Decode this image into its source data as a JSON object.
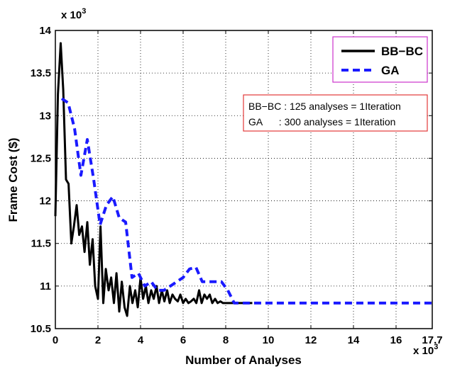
{
  "chart_data": {
    "type": "line",
    "xlabel": "Number of Analyses",
    "ylabel": "Frame Cost ($)",
    "x_multiplier_label": "x 10",
    "x_multiplier_exp": "3",
    "y_multiplier_label": "x 10",
    "y_multiplier_exp": "3",
    "xlim": [
      0,
      17.7
    ],
    "ylim": [
      10.5,
      14
    ],
    "xticks": [
      "0",
      "2",
      "4",
      "6",
      "8",
      "10",
      "12",
      "14",
      "16",
      "17.7"
    ],
    "xtick_values": [
      0,
      2,
      4,
      6,
      8,
      10,
      12,
      14,
      16,
      17.7
    ],
    "yticks": [
      "10.5",
      "11",
      "11.5",
      "12",
      "12.5",
      "13",
      "13.5",
      "14"
    ],
    "ytick_values": [
      10.5,
      11,
      11.5,
      12,
      12.5,
      13,
      13.5,
      14
    ],
    "grid": true,
    "legend_position": "top-right",
    "series": [
      {
        "name": "BB−BC",
        "color": "#000000",
        "dash": "solid",
        "x": [
          0.0,
          0.12,
          0.25,
          0.37,
          0.5,
          0.62,
          0.75,
          0.87,
          1.0,
          1.12,
          1.25,
          1.37,
          1.5,
          1.62,
          1.75,
          1.87,
          2.0,
          2.12,
          2.25,
          2.37,
          2.5,
          2.62,
          2.75,
          2.87,
          3.0,
          3.12,
          3.25,
          3.37,
          3.5,
          3.62,
          3.75,
          3.87,
          4.0,
          4.12,
          4.25,
          4.37,
          4.5,
          4.62,
          4.75,
          4.87,
          5.0,
          5.12,
          5.25,
          5.37,
          5.5,
          5.62,
          5.75,
          5.87,
          6.0,
          6.12,
          6.25,
          6.37,
          6.5,
          6.62,
          6.75,
          6.87,
          7.0,
          7.12,
          7.25,
          7.37,
          7.5,
          7.62,
          7.75,
          7.87,
          8.0,
          8.5,
          9.0,
          9.25
        ],
        "y": [
          11.82,
          13.25,
          13.85,
          13.3,
          12.25,
          12.2,
          11.5,
          11.7,
          11.95,
          11.6,
          11.7,
          11.4,
          11.75,
          11.25,
          11.55,
          11.0,
          10.85,
          11.7,
          10.8,
          11.2,
          10.95,
          11.1,
          10.8,
          11.15,
          10.7,
          11.05,
          10.75,
          10.65,
          11.0,
          10.8,
          10.95,
          10.75,
          11.1,
          10.85,
          11.0,
          10.8,
          10.95,
          10.85,
          11.0,
          10.8,
          10.95,
          10.82,
          10.95,
          10.8,
          10.9,
          10.85,
          10.82,
          10.9,
          10.8,
          10.85,
          10.8,
          10.82,
          10.85,
          10.8,
          10.95,
          10.8,
          10.9,
          10.85,
          10.9,
          10.8,
          10.85,
          10.8,
          10.82,
          10.8,
          10.8,
          10.8,
          10.8,
          10.8
        ]
      },
      {
        "name": "GA",
        "color": "#1a1aff",
        "dash": "dashed",
        "x": [
          0.3,
          0.6,
          0.9,
          1.2,
          1.5,
          1.8,
          2.1,
          2.4,
          2.7,
          3.0,
          3.3,
          3.6,
          3.9,
          4.2,
          4.5,
          4.8,
          5.1,
          5.4,
          5.7,
          6.0,
          6.3,
          6.6,
          6.9,
          7.2,
          7.5,
          7.8,
          8.1,
          8.4,
          8.7,
          9.0,
          9.6,
          10.5,
          12.0,
          14.0,
          16.0,
          17.7
        ],
        "y": [
          13.2,
          13.15,
          12.85,
          12.3,
          12.72,
          12.25,
          11.72,
          11.95,
          12.05,
          11.8,
          11.75,
          11.1,
          11.15,
          11.0,
          11.05,
          10.95,
          10.95,
          11.0,
          11.05,
          11.1,
          11.2,
          11.22,
          11.05,
          11.05,
          11.05,
          11.05,
          10.95,
          10.8,
          10.8,
          10.8,
          10.8,
          10.8,
          10.8,
          10.8,
          10.8,
          10.8
        ]
      }
    ],
    "annotation": [
      "BB−BC : 125 analyses = 1Iteration",
      "GA      : 300 analyses = 1Iteration"
    ]
  },
  "colors": {
    "legend_border": "#cc33cc",
    "note_border": "#e23a3a",
    "bbbc": "#000000",
    "ga": "#1a1aff"
  }
}
